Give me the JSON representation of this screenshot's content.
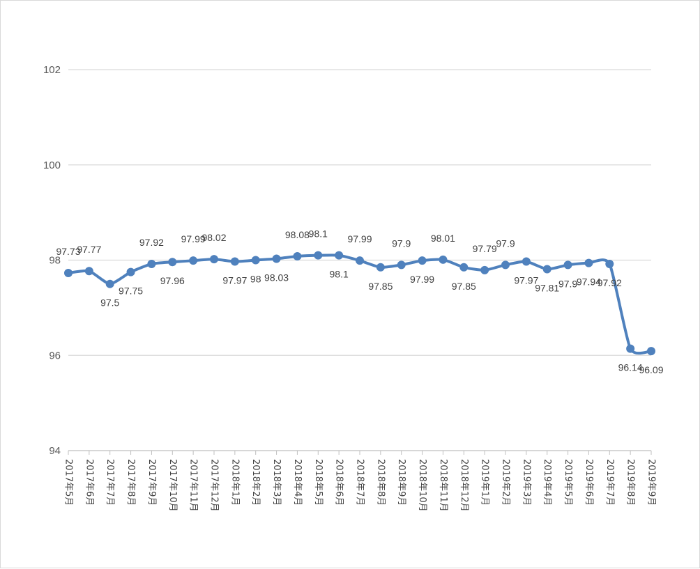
{
  "chart_data": {
    "type": "line",
    "title": "",
    "xlabel": "",
    "ylabel": "",
    "ylim": [
      94,
      102
    ],
    "yticks": [
      94,
      96,
      98,
      100,
      102
    ],
    "grid": true,
    "legend": "none",
    "smooth": true,
    "color": "#4f81bd",
    "categories": [
      "2017年5月",
      "2017年6月",
      "2017年7月",
      "2017年8月",
      "2017年9月",
      "2017年10月",
      "2017年11月",
      "2017年12月",
      "2018年1月",
      "2018年2月",
      "2018年3月",
      "2018年4月",
      "2018年5月",
      "2018年6月",
      "2018年7月",
      "2018年8月",
      "2018年9月",
      "2018年10月",
      "2018年11月",
      "2018年12月",
      "2019年1月",
      "2019年2月",
      "2019年3月",
      "2019年4月",
      "2019年5月",
      "2019年6月",
      "2019年7月",
      "2019年8月",
      "2019年9月"
    ],
    "values": [
      97.73,
      97.77,
      97.5,
      97.75,
      97.92,
      97.96,
      97.99,
      98.02,
      97.97,
      98.0,
      98.03,
      98.08,
      98.1,
      98.1,
      97.99,
      97.85,
      97.9,
      97.99,
      98.01,
      97.85,
      97.79,
      97.9,
      97.97,
      97.81,
      97.9,
      97.94,
      97.92,
      96.14,
      96.09
    ],
    "labels": [
      "97.73",
      "97.77",
      "97.5",
      "97.75",
      "97.92",
      "97.96",
      "97.99",
      "98.02",
      "97.97",
      "98",
      "98.03",
      "98.08",
      "98.1",
      "98.1",
      "97.99",
      "97.85",
      "97.9",
      "97.99",
      "98.01",
      "97.85",
      "97.79",
      "97.9",
      "97.97",
      "97.81",
      "97.9",
      "97.94",
      "97.92",
      "96.14",
      "96.09"
    ],
    "label_positions": [
      "above",
      "above",
      "below",
      "below",
      "above",
      "below",
      "above",
      "above",
      "below",
      "below",
      "below",
      "above",
      "above",
      "below",
      "above",
      "below",
      "above",
      "below",
      "above",
      "below",
      "above",
      "above",
      "below",
      "below",
      "below",
      "below",
      "below",
      "below",
      "below"
    ]
  }
}
